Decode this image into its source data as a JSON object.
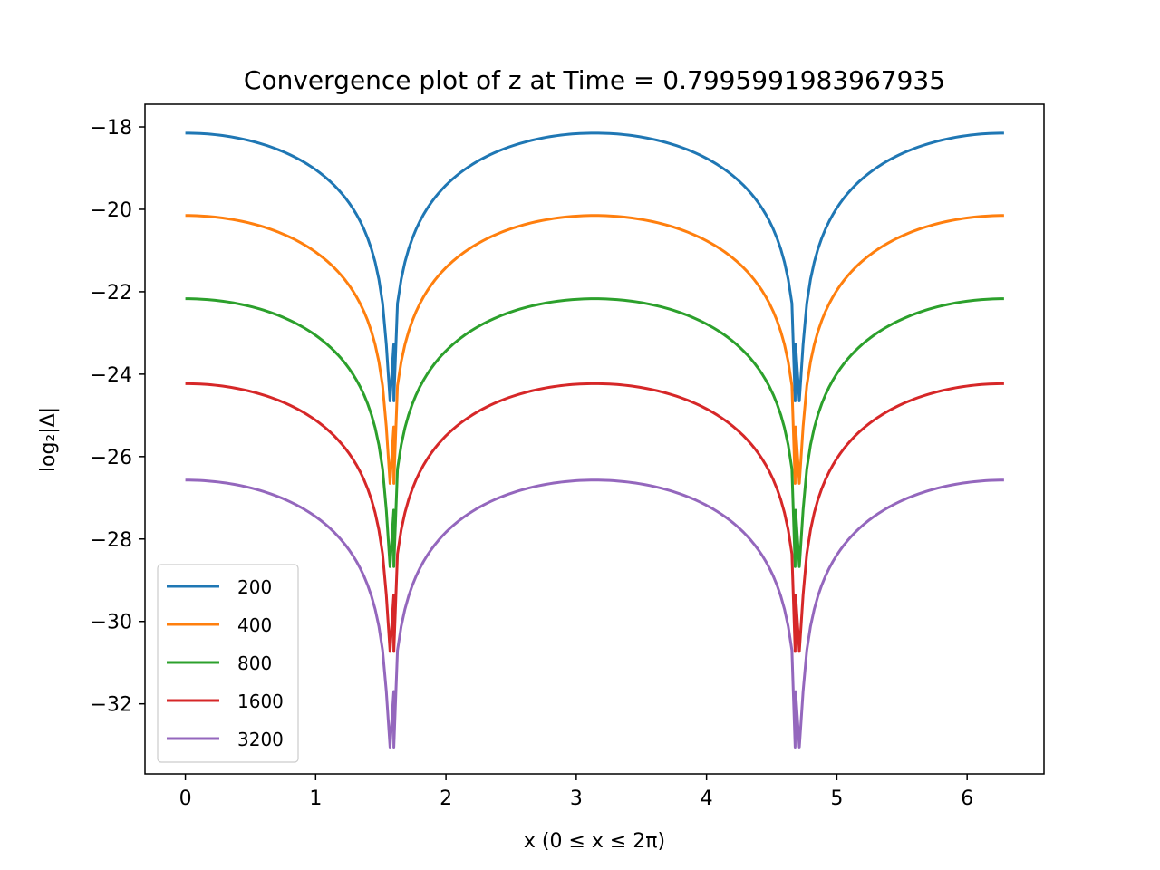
{
  "chart_data": {
    "type": "line",
    "title": "Convergence plot of z at Time = 0.7995991983967935",
    "xlabel": "x (0 ≤ x ≤ 2π)",
    "ylabel": "log₂|Δ|",
    "xlim": [
      -0.31,
      6.59
    ],
    "ylim": [
      -33.7,
      -17.45
    ],
    "xticks": [
      0,
      1,
      2,
      3,
      4,
      5,
      6
    ],
    "yticks": [
      -32,
      -30,
      -28,
      -26,
      -24,
      -22,
      -20,
      -18
    ],
    "xtick_labels": [
      "0",
      "1",
      "2",
      "3",
      "4",
      "5",
      "6"
    ],
    "ytick_labels": [
      "−32",
      "−30",
      "−28",
      "−26",
      "−24",
      "−22",
      "−20",
      "−18"
    ],
    "grid": false,
    "legend_position": "lower-left",
    "x_range": [
      0,
      6.2832
    ],
    "dip_x": [
      1.6,
      4.68
    ],
    "series": [
      {
        "name": "200",
        "color": "#1f77b4",
        "max": -18.15,
        "min": -24.65
      },
      {
        "name": "400",
        "color": "#ff7f0e",
        "max": -20.15,
        "min": -26.65
      },
      {
        "name": "800",
        "color": "#2ca02c",
        "max": -22.17,
        "min": -28.67
      },
      {
        "name": "1600",
        "color": "#d62728",
        "max": -24.23,
        "min": -30.73
      },
      {
        "name": "3200",
        "color": "#9467bd",
        "max": -26.57,
        "min": -33.05
      }
    ]
  }
}
